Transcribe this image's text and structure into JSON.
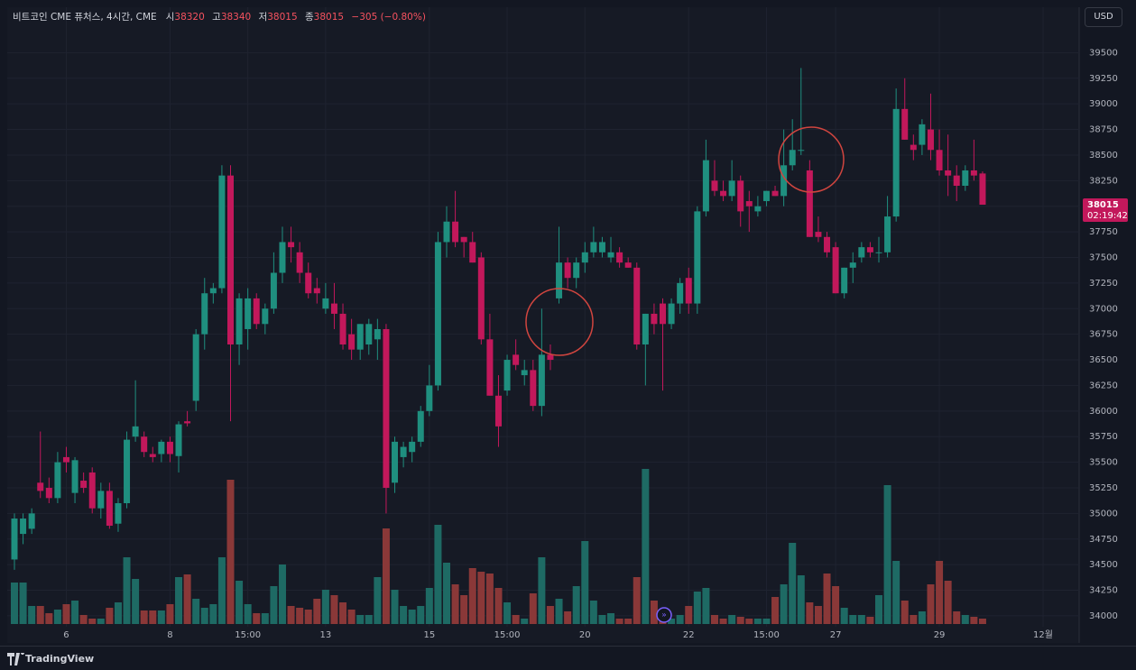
{
  "header": {
    "symbol": "비트코인 CME 퓨처스, 4시간, CME",
    "fields": [
      {
        "label": "시",
        "value": 38320
      },
      {
        "label": "고",
        "value": 38340
      },
      {
        "label": "저",
        "value": 38015
      },
      {
        "label": "종",
        "value": 38015
      }
    ],
    "change": "−305 (−0.80%)",
    "currency": "USD"
  },
  "price_tag": {
    "last_price": 38015,
    "countdown": "02:19:42"
  },
  "footer": {
    "brand": "TradingView"
  },
  "chart_data": {
    "type": "candlestick",
    "categories": [
      null,
      null,
      null,
      null,
      null,
      null,
      "6",
      null,
      null,
      null,
      null,
      null,
      null,
      null,
      null,
      null,
      null,
      null,
      "8",
      null,
      null,
      null,
      null,
      null,
      null,
      null,
      null,
      "15:00",
      null,
      null,
      null,
      null,
      null,
      null,
      null,
      null,
      "13",
      null,
      null,
      null,
      null,
      null,
      null,
      null,
      null,
      null,
      null,
      null,
      "15",
      null,
      null,
      null,
      null,
      null,
      null,
      null,
      null,
      "15:00",
      null,
      null,
      null,
      null,
      null,
      null,
      null,
      null,
      "20",
      null,
      null,
      null,
      null,
      null,
      null,
      null,
      null,
      null,
      null,
      null,
      "22",
      null,
      null,
      null,
      null,
      null,
      null,
      null,
      null,
      "15:00",
      null,
      null,
      null,
      null,
      null,
      null,
      null,
      "27",
      null,
      null,
      null,
      null,
      null,
      null,
      null,
      null,
      null,
      null,
      null,
      "29",
      null,
      null,
      null,
      null,
      null,
      null,
      null,
      null,
      null,
      null,
      null,
      "12월"
    ],
    "open": [
      34550,
      34800,
      34850,
      35300,
      35250,
      35150,
      35550,
      35200,
      35320,
      35400,
      35050,
      35220,
      34900,
      35100,
      35750,
      35750,
      35580,
      35580,
      35700,
      35560,
      35900,
      36100,
      36750,
      37150,
      37200,
      38300,
      36650,
      36800,
      37100,
      36850,
      37000,
      37350,
      37650,
      37550,
      37350,
      37200,
      37000,
      37050,
      36950,
      36750,
      36600,
      36650,
      36700,
      36800,
      35300,
      35550,
      35600,
      35700,
      36000,
      36250,
      37650,
      37850,
      37700,
      37650,
      37500,
      36700,
      36150,
      36200,
      36550,
      36350,
      36400,
      36050,
      36550,
      37100,
      37450,
      37300,
      37450,
      37550,
      37550,
      37500,
      37550,
      37450,
      37400,
      36650,
      36950,
      37050,
      36850,
      37050,
      37300,
      37050,
      37950,
      38250,
      38150,
      38100,
      38250,
      38050,
      37950,
      38050,
      38150,
      38100,
      38400,
      38550,
      38350,
      37750,
      37700,
      37600,
      37150,
      37400,
      37500,
      37600,
      37550,
      37550,
      37900,
      38950,
      38600,
      38600,
      38750,
      38550,
      38350,
      38300,
      38200,
      38350,
      38320,
      null,
      null,
      null,
      null,
      null,
      null,
      null
    ],
    "high": [
      35000,
      35000,
      35050,
      35800,
      35350,
      35600,
      35650,
      35550,
      35400,
      35450,
      35300,
      35300,
      35150,
      35800,
      36300,
      35800,
      35650,
      35720,
      35750,
      35900,
      36000,
      36800,
      37300,
      37250,
      38400,
      38400,
      37150,
      37200,
      37150,
      37050,
      37550,
      37800,
      37800,
      37650,
      37450,
      37300,
      37250,
      37250,
      37050,
      36900,
      36850,
      36900,
      36900,
      36850,
      35750,
      35700,
      35750,
      36050,
      36450,
      37750,
      38000,
      38150,
      37700,
      37750,
      37550,
      36950,
      36350,
      36550,
      36700,
      36500,
      36500,
      37000,
      36650,
      37800,
      37500,
      37500,
      37650,
      37800,
      37700,
      37700,
      37600,
      37500,
      37450,
      36950,
      37050,
      37100,
      37100,
      37300,
      37400,
      38000,
      38650,
      38450,
      38250,
      38450,
      38300,
      38150,
      38100,
      38150,
      38200,
      38750,
      38850,
      39350,
      38450,
      37900,
      37750,
      37650,
      37400,
      37550,
      37650,
      37650,
      37700,
      38100,
      39150,
      39250,
      38700,
      38850,
      39100,
      38750,
      38700,
      38400,
      38400,
      38650,
      38340,
      null,
      null,
      null,
      null,
      null,
      null,
      null
    ],
    "low": [
      34450,
      34700,
      34800,
      35150,
      35100,
      35100,
      35400,
      35100,
      35200,
      35000,
      34950,
      34850,
      34820,
      35050,
      35700,
      35550,
      35500,
      35500,
      35500,
      35400,
      35850,
      36000,
      36600,
      37050,
      37150,
      35900,
      36450,
      36600,
      36800,
      36750,
      36950,
      37250,
      37450,
      37250,
      37100,
      37050,
      36950,
      36800,
      36600,
      36500,
      36500,
      36550,
      36500,
      35000,
      35200,
      35450,
      35500,
      35650,
      35950,
      36200,
      37500,
      37600,
      37500,
      37450,
      36650,
      36150,
      35650,
      36150,
      36400,
      36250,
      36000,
      35950,
      36400,
      37050,
      37200,
      37200,
      37350,
      37500,
      37500,
      37450,
      37400,
      37400,
      36600,
      36250,
      36750,
      36200,
      36800,
      36950,
      36950,
      36950,
      37900,
      38100,
      38050,
      38050,
      37800,
      37750,
      37900,
      38000,
      38100,
      38000,
      38350,
      38500,
      37700,
      37650,
      37500,
      37150,
      37100,
      37250,
      37450,
      37500,
      37450,
      37500,
      37850,
      38650,
      38450,
      38500,
      38450,
      38300,
      38100,
      38050,
      38150,
      38250,
      38015,
      null,
      null,
      null,
      null,
      null,
      null,
      null
    ],
    "close": [
      34950,
      34950,
      35000,
      35220,
      35150,
      35500,
      35500,
      35520,
      35250,
      35050,
      35220,
      34880,
      35100,
      35720,
      35850,
      35600,
      35550,
      35700,
      35580,
      35870,
      35880,
      36750,
      37150,
      37200,
      38300,
      36650,
      37100,
      37100,
      36850,
      37000,
      37350,
      37650,
      37600,
      37350,
      37150,
      37150,
      37100,
      36950,
      36650,
      36600,
      36850,
      36850,
      36800,
      35250,
      35700,
      35650,
      35700,
      36000,
      36250,
      37650,
      37850,
      37650,
      37650,
      37450,
      36700,
      36150,
      35850,
      36500,
      36450,
      36400,
      36050,
      36550,
      36500,
      37450,
      37300,
      37450,
      37550,
      37650,
      37650,
      37550,
      37450,
      37400,
      36650,
      36950,
      36850,
      36850,
      37050,
      37250,
      37050,
      37950,
      38450,
      38150,
      38100,
      38250,
      37950,
      38000,
      38000,
      38150,
      38100,
      38400,
      38550,
      38550,
      37700,
      37700,
      37550,
      37150,
      37400,
      37450,
      37600,
      37550,
      37550,
      37900,
      38950,
      38650,
      38550,
      38800,
      38550,
      38350,
      38300,
      38200,
      38350,
      38300,
      38015,
      null,
      null,
      null,
      null,
      null,
      null,
      null
    ],
    "volume": [
      46,
      46,
      20,
      20,
      12,
      16,
      22,
      26,
      10,
      6,
      6,
      18,
      24,
      74,
      50,
      15,
      15,
      15,
      22,
      52,
      55,
      28,
      18,
      22,
      74,
      160,
      48,
      22,
      12,
      12,
      42,
      66,
      20,
      18,
      16,
      28,
      38,
      32,
      24,
      16,
      10,
      10,
      52,
      106,
      38,
      20,
      16,
      20,
      40,
      110,
      68,
      44,
      32,
      62,
      58,
      56,
      40,
      24,
      10,
      6,
      34,
      74,
      20,
      28,
      14,
      42,
      92,
      26,
      10,
      12,
      6,
      6,
      52,
      172,
      26,
      16,
      6,
      10,
      20,
      36,
      40,
      10,
      6,
      10,
      8,
      6,
      6,
      6,
      30,
      44,
      90,
      54,
      24,
      20,
      56,
      42,
      18,
      10,
      10,
      8,
      32,
      154,
      70,
      26,
      10,
      14,
      44,
      70,
      48,
      14,
      10,
      8,
      6,
      null,
      null,
      null,
      null,
      null,
      null,
      null
    ],
    "ylim": [
      33920,
      39750
    ],
    "yticks": [
      34000,
      34250,
      34500,
      34750,
      35000,
      35250,
      35500,
      35750,
      36000,
      36250,
      36500,
      36750,
      37000,
      37250,
      37500,
      37750,
      38000,
      38250,
      38500,
      38750,
      39000,
      39250,
      39500
    ],
    "volume_lim": [
      0,
      662
    ],
    "up_color": "#1f8f7f",
    "down_color": "#c2185b",
    "volume_up_color": "#1e6a64",
    "volume_down_color": "#8a3838",
    "grid": true
  }
}
